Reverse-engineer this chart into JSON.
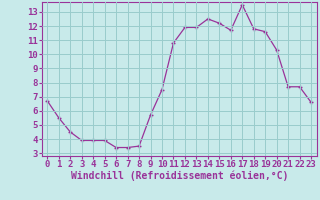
{
  "hours": [
    0,
    1,
    2,
    3,
    4,
    5,
    6,
    7,
    8,
    9,
    10,
    11,
    12,
    13,
    14,
    15,
    16,
    17,
    18,
    19,
    20,
    21,
    22,
    23
  ],
  "values": [
    6.7,
    5.5,
    4.5,
    3.9,
    3.9,
    3.9,
    3.4,
    3.4,
    3.5,
    5.7,
    7.5,
    10.8,
    11.9,
    11.9,
    12.5,
    12.2,
    11.7,
    13.5,
    11.8,
    11.6,
    10.3,
    7.7,
    7.7,
    6.6
  ],
  "line_color": "#993399",
  "marker": "+",
  "bg_color": "#c8eaea",
  "grid_color": "#99cccc",
  "xlabel": "Windchill (Refroidissement éolien,°C)",
  "xlabel_color": "#993399",
  "tick_color": "#993399",
  "ylim_min": 2.8,
  "ylim_max": 13.7,
  "yticks": [
    3,
    4,
    5,
    6,
    7,
    8,
    9,
    10,
    11,
    12,
    13
  ],
  "xlim_min": -0.5,
  "xlim_max": 23.5,
  "xticks": [
    0,
    1,
    2,
    3,
    4,
    5,
    6,
    7,
    8,
    9,
    10,
    11,
    12,
    13,
    14,
    15,
    16,
    17,
    18,
    19,
    20,
    21,
    22,
    23
  ],
  "tick_fontsize": 6.5,
  "xlabel_fontsize": 7
}
